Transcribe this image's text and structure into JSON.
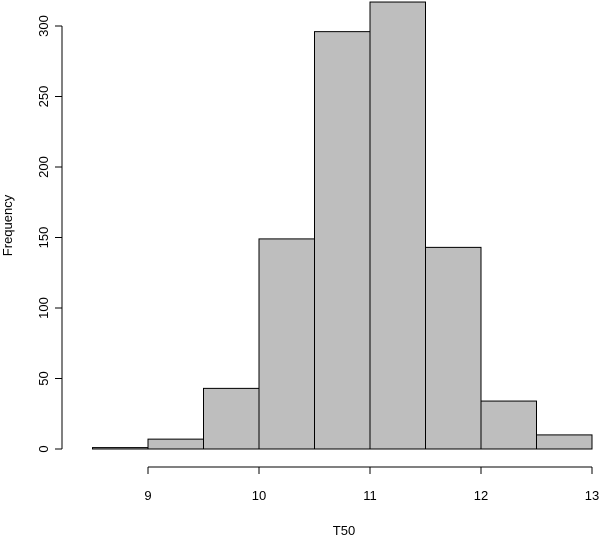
{
  "chart_data": {
    "type": "bar",
    "title": "",
    "xlabel": "T50",
    "ylabel": "Frequency",
    "bins": [
      {
        "from": 8.5,
        "to": 9.0,
        "count": 1
      },
      {
        "from": 9.0,
        "to": 9.5,
        "count": 7
      },
      {
        "from": 9.5,
        "to": 10.0,
        "count": 43
      },
      {
        "from": 10.0,
        "to": 10.5,
        "count": 149
      },
      {
        "from": 10.5,
        "to": 11.0,
        "count": 296
      },
      {
        "from": 11.0,
        "to": 11.5,
        "count": 317
      },
      {
        "from": 11.5,
        "to": 12.0,
        "count": 143
      },
      {
        "from": 12.0,
        "to": 12.5,
        "count": 34
      },
      {
        "from": 12.5,
        "to": 13.0,
        "count": 10
      }
    ],
    "x_ticks": [
      9,
      10,
      11,
      12,
      13
    ],
    "y_ticks": [
      0,
      50,
      100,
      150,
      200,
      250,
      300
    ],
    "xlim": [
      9,
      13
    ],
    "ylim": [
      0,
      300
    ],
    "grid": false,
    "bar_color": "#bebebe",
    "edge_color": "#000000"
  }
}
